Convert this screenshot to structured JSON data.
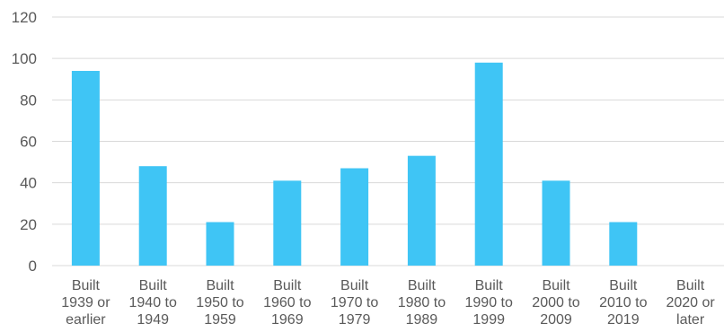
{
  "chart_data": {
    "type": "bar",
    "title": "",
    "xlabel": "",
    "ylabel": "",
    "ylim": [
      0,
      120
    ],
    "yticks": [
      0,
      20,
      40,
      60,
      80,
      100,
      120
    ],
    "grid": true,
    "legend": "none",
    "colors": {
      "bar": "#3FC5F5",
      "grid": "#D9D9D9",
      "text": "#595959"
    },
    "categories": [
      [
        "Built",
        "1939 or",
        "earlier"
      ],
      [
        "Built",
        "1940 to",
        "1949"
      ],
      [
        "Built",
        "1950 to",
        "1959"
      ],
      [
        "Built",
        "1960 to",
        "1969"
      ],
      [
        "Built",
        "1970 to",
        "1979"
      ],
      [
        "Built",
        "1980 to",
        "1989"
      ],
      [
        "Built",
        "1990 to",
        "1999"
      ],
      [
        "Built",
        "2000 to",
        "2009"
      ],
      [
        "Built",
        "2010 to",
        "2019"
      ],
      [
        "Built",
        "2020 or",
        "later"
      ]
    ],
    "values": [
      94,
      48,
      21,
      41,
      47,
      53,
      98,
      41,
      21,
      0
    ]
  }
}
